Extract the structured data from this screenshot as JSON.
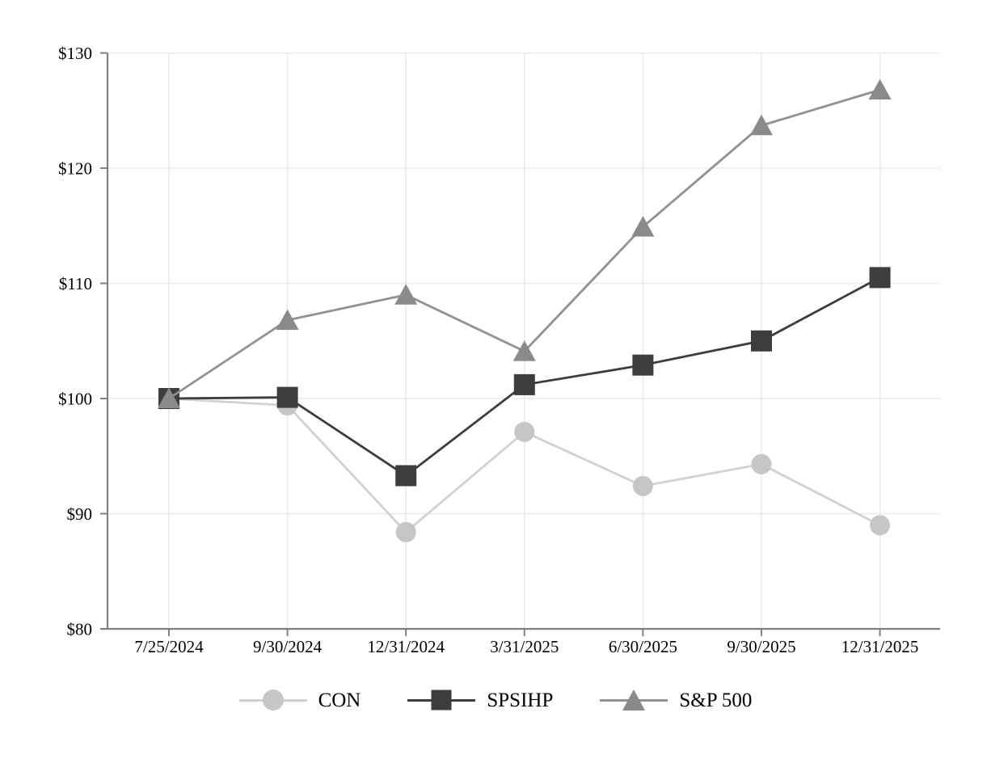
{
  "chart_data": {
    "type": "line",
    "title": "",
    "xlabel": "",
    "ylabel": "",
    "x_categories": [
      "7/25/2024",
      "9/30/2024",
      "12/31/2024",
      "3/31/2025",
      "6/30/2025",
      "9/30/2025",
      "12/31/2025"
    ],
    "y_ticks": [
      80,
      90,
      100,
      110,
      120,
      130
    ],
    "y_tick_labels": [
      "$80",
      "$90",
      "$100",
      "$110",
      "$120",
      "$130"
    ],
    "ylim": [
      80,
      130
    ],
    "grid": true,
    "legend_position": "bottom",
    "series": [
      {
        "name": "CON",
        "marker": "circle",
        "marker_color": "#c6c6c6",
        "line_color": "#d1d1d1",
        "values": [
          100.0,
          99.4,
          88.4,
          97.1,
          92.4,
          94.3,
          89.0
        ]
      },
      {
        "name": "SPSIHP",
        "marker": "square",
        "marker_color": "#3d3d3d",
        "line_color": "#3d3d3d",
        "values": [
          100.0,
          100.1,
          93.3,
          101.2,
          102.9,
          105.0,
          110.5
        ]
      },
      {
        "name": "S&P 500",
        "marker": "triangle",
        "marker_color": "#8a8a8a",
        "line_color": "#919191",
        "values": [
          100.0,
          106.8,
          109.0,
          104.1,
          114.9,
          123.7,
          126.8
        ]
      }
    ],
    "colors": {
      "axis": "#808080",
      "gridline": "#eaeaea",
      "background": "#ffffff",
      "tick_text": "#000000"
    }
  }
}
